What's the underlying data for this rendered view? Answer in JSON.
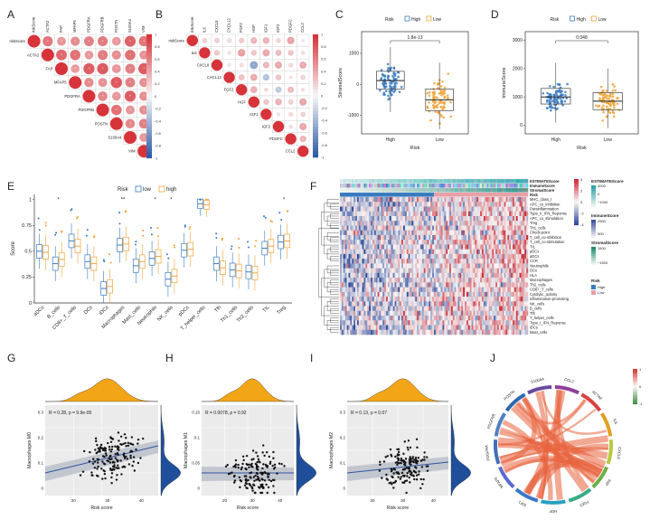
{
  "panel_letters": [
    "A",
    "B",
    "C",
    "D",
    "E",
    "F",
    "G",
    "H",
    "I",
    "J"
  ],
  "colors": {
    "high_red": "#d6333a",
    "mid_white": "#f7f7f7",
    "low_blue": "#2d5aa5",
    "risk_high": "#3a7bbf",
    "risk_low": "#f2a33a",
    "stromal_green": "#1a9a78",
    "density_orange": "#f2a516",
    "density_blue": "#1f4f9a"
  },
  "corr_colorbar_ticks": [
    "1",
    "0.8",
    "0.6",
    "0.4",
    "0.2",
    "0",
    "-0.2",
    "-0.4",
    "-0.6",
    "-0.8",
    "-1"
  ],
  "panelA": {
    "genes": [
      "riskScore",
      "ACTA2",
      "FAP",
      "MFAP5",
      "PDGFRA",
      "PDGFRB",
      "POSTN",
      "S100A4",
      "VIM"
    ]
  },
  "panelB": {
    "genes": [
      "riskScore",
      "IL6",
      "CXCL8",
      "CXCL12",
      "FGF2",
      "HGF",
      "IGF1",
      "IGF2",
      "PDGFC",
      "CCL2"
    ]
  },
  "chart_data": [
    {
      "panel": "C",
      "type": "box",
      "legend_title": "Risk",
      "legend": [
        "High",
        "Low"
      ],
      "categories": [
        "High",
        "Low"
      ],
      "xlabel": "Risk",
      "ylabel": "StromalScore",
      "yticks": [
        -1000,
        0,
        1000
      ],
      "ylim": [
        -1600,
        1700
      ],
      "pvalue": "1.8e-13",
      "series": [
        {
          "name": "High",
          "q1": -150,
          "median": 120,
          "q3": 420,
          "whisker_low": -900,
          "whisker_high": 1200
        },
        {
          "name": "Low",
          "q1": -850,
          "median": -500,
          "q3": -150,
          "whisker_low": -1450,
          "whisker_high": 700
        }
      ]
    },
    {
      "panel": "D",
      "type": "box",
      "legend_title": "Risk",
      "legend": [
        "High",
        "Low"
      ],
      "categories": [
        "High",
        "Low"
      ],
      "xlabel": "Risk",
      "ylabel": "ImmuneScore",
      "yticks": [
        0,
        1000,
        2000,
        3000
      ],
      "ylim": [
        -300,
        3300
      ],
      "pvalue": "0.048",
      "series": [
        {
          "name": "High",
          "q1": 750,
          "median": 1000,
          "q3": 1300,
          "whisker_low": 100,
          "whisker_high": 2200
        },
        {
          "name": "Low",
          "q1": 550,
          "median": 850,
          "q3": 1150,
          "whisker_low": -100,
          "whisker_high": 2000
        }
      ]
    },
    {
      "panel": "E",
      "type": "box",
      "legend_title": "Risk",
      "legend": [
        "low",
        "high"
      ],
      "ylabel": "Score",
      "yticks": [
        0,
        0.25,
        0.5,
        0.75,
        1
      ],
      "ylim": [
        0,
        1.05
      ],
      "categories": [
        "aDCs",
        "B_cells",
        "CD8+_T_cells",
        "DCs",
        "iDCs",
        "Macrophages",
        "Mast_cells",
        "Neutrophils",
        "NK_cells",
        "pDCs",
        "T_helper_cells",
        "Tfh",
        "Th1_cells",
        "Th2_cells",
        "TIL",
        "Treg"
      ],
      "significance": [
        "",
        "*",
        "",
        "",
        "",
        "**",
        "",
        "*",
        "*",
        "",
        "",
        "",
        "",
        "",
        "",
        "*"
      ],
      "series": [
        {
          "name": "low",
          "medians": [
            0.5,
            0.38,
            0.6,
            0.4,
            0.14,
            0.56,
            0.36,
            0.43,
            0.23,
            0.51,
            0.96,
            0.38,
            0.32,
            0.3,
            0.53,
            0.59
          ]
        },
        {
          "name": "high",
          "medians": [
            0.49,
            0.42,
            0.55,
            0.38,
            0.16,
            0.57,
            0.4,
            0.45,
            0.26,
            0.52,
            0.95,
            0.34,
            0.31,
            0.29,
            0.55,
            0.6
          ]
        }
      ]
    },
    {
      "panel": "G",
      "type": "scatter",
      "xlabel": "Risk score",
      "ylabel": "Macrophages M0",
      "stat": "R = 0.28, p = 9.9e-05",
      "xticks": [
        20,
        30,
        40
      ],
      "yticks": [
        0,
        0.1,
        0.2,
        0.3
      ]
    },
    {
      "panel": "H",
      "type": "scatter",
      "xlabel": "Risk score",
      "ylabel": "Macrophages M1",
      "stat": "R = 0.0078, p = 0.92",
      "xticks": [
        20,
        30,
        40
      ],
      "yticks": [
        0,
        0.05,
        0.1,
        0.15
      ]
    },
    {
      "panel": "I",
      "type": "scatter",
      "xlabel": "Risk score",
      "ylabel": "Macrophages M2",
      "stat": "R = 0.13, p = 0.07",
      "xticks": [
        20,
        30,
        40
      ],
      "yticks": [
        0,
        0.1,
        0.2,
        0.3
      ]
    }
  ],
  "panelF": {
    "annotation_labels": [
      "ESTIMATEScore",
      "ImmuneScore",
      "StromalScore",
      "Risk"
    ],
    "rows": [
      "MHC_class_I",
      "APC_co_inhibition",
      "Parainflammation",
      "Type_II_IFN_Reponse",
      "APC_co_stimulation",
      "Treg",
      "Th1_cells",
      "Check-point",
      "T_cell_co-inhibition",
      "T_cell_co-stimulation",
      "TIL",
      "pDCs",
      "aDCs",
      "CCR",
      "Neutrophils",
      "DCs",
      "HLA",
      "Macrophages",
      "Th2_cells",
      "CD8+_T_cells",
      "Cytolytic_activity",
      "Inflammation-promoting",
      "NK_cells",
      "B_cells",
      "Tfh",
      "T_helper_cells",
      "Type_I_IFN_Reponse",
      "iDCs",
      "Mast_cells"
    ],
    "legend": {
      "estimate_title": "ESTIMATEScore",
      "estimate_ticks": [
        "4000",
        "0",
        "−1000"
      ],
      "immune_title": "ImmuneScore",
      "immune_ticks": [
        "2500",
        "500"
      ],
      "stromal_title": "StromalScore",
      "stromal_ticks": [
        "1500",
        "−1500"
      ],
      "risk_title": "Risk",
      "risk_items": [
        "High",
        "Low"
      ]
    },
    "scale_ticks": [
      "4",
      "2",
      "0",
      "-2",
      "-4"
    ]
  },
  "panelJ": {
    "labels": [
      "CCL2",
      "ACTA2",
      "IL6",
      "CXCL8",
      "FAP",
      "FGF2",
      "HGF",
      "IGF1",
      "MFAP5",
      "PDGFRA",
      "PDGFRB",
      "POSTN",
      "S100A4"
    ],
    "scale_ticks": [
      "1",
      "0",
      "-1"
    ]
  }
}
